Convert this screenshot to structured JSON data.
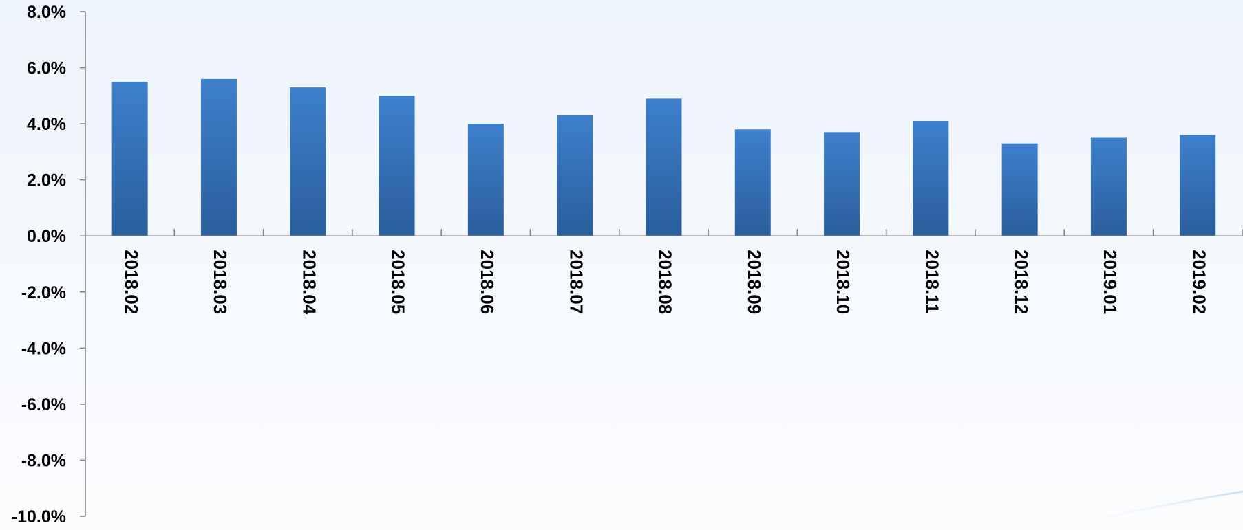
{
  "chart_data": {
    "type": "bar",
    "title": "",
    "xlabel": "",
    "ylabel": "",
    "categories": [
      "2018.02",
      "2018.03",
      "2018.04",
      "2018.05",
      "2018.06",
      "2018.07",
      "2018.08",
      "2018.09",
      "2018.10",
      "2018.11",
      "2018.12",
      "2019.01",
      "2019.02"
    ],
    "values": [
      5.5,
      5.6,
      5.3,
      5.0,
      4.0,
      4.3,
      4.9,
      3.8,
      3.7,
      4.1,
      3.3,
      3.5,
      3.6
    ],
    "value_unit": "%",
    "ylim": [
      -10.0,
      8.0
    ],
    "yticks": [
      8.0,
      6.0,
      4.0,
      2.0,
      0.0,
      -2.0,
      -4.0,
      -6.0,
      -8.0,
      -10.0
    ],
    "ytick_labels": [
      "8.0%",
      "6.0%",
      "4.0%",
      "2.0%",
      "0.0%",
      "-2.0%",
      "-4.0%",
      "-6.0%",
      "-8.0%",
      "-10.0%"
    ],
    "grid": false,
    "legend": "none",
    "colors": {
      "bar_top": "#3d80cc",
      "bar_bottom": "#2a5e9c",
      "axis": "#7f7f7f"
    }
  }
}
